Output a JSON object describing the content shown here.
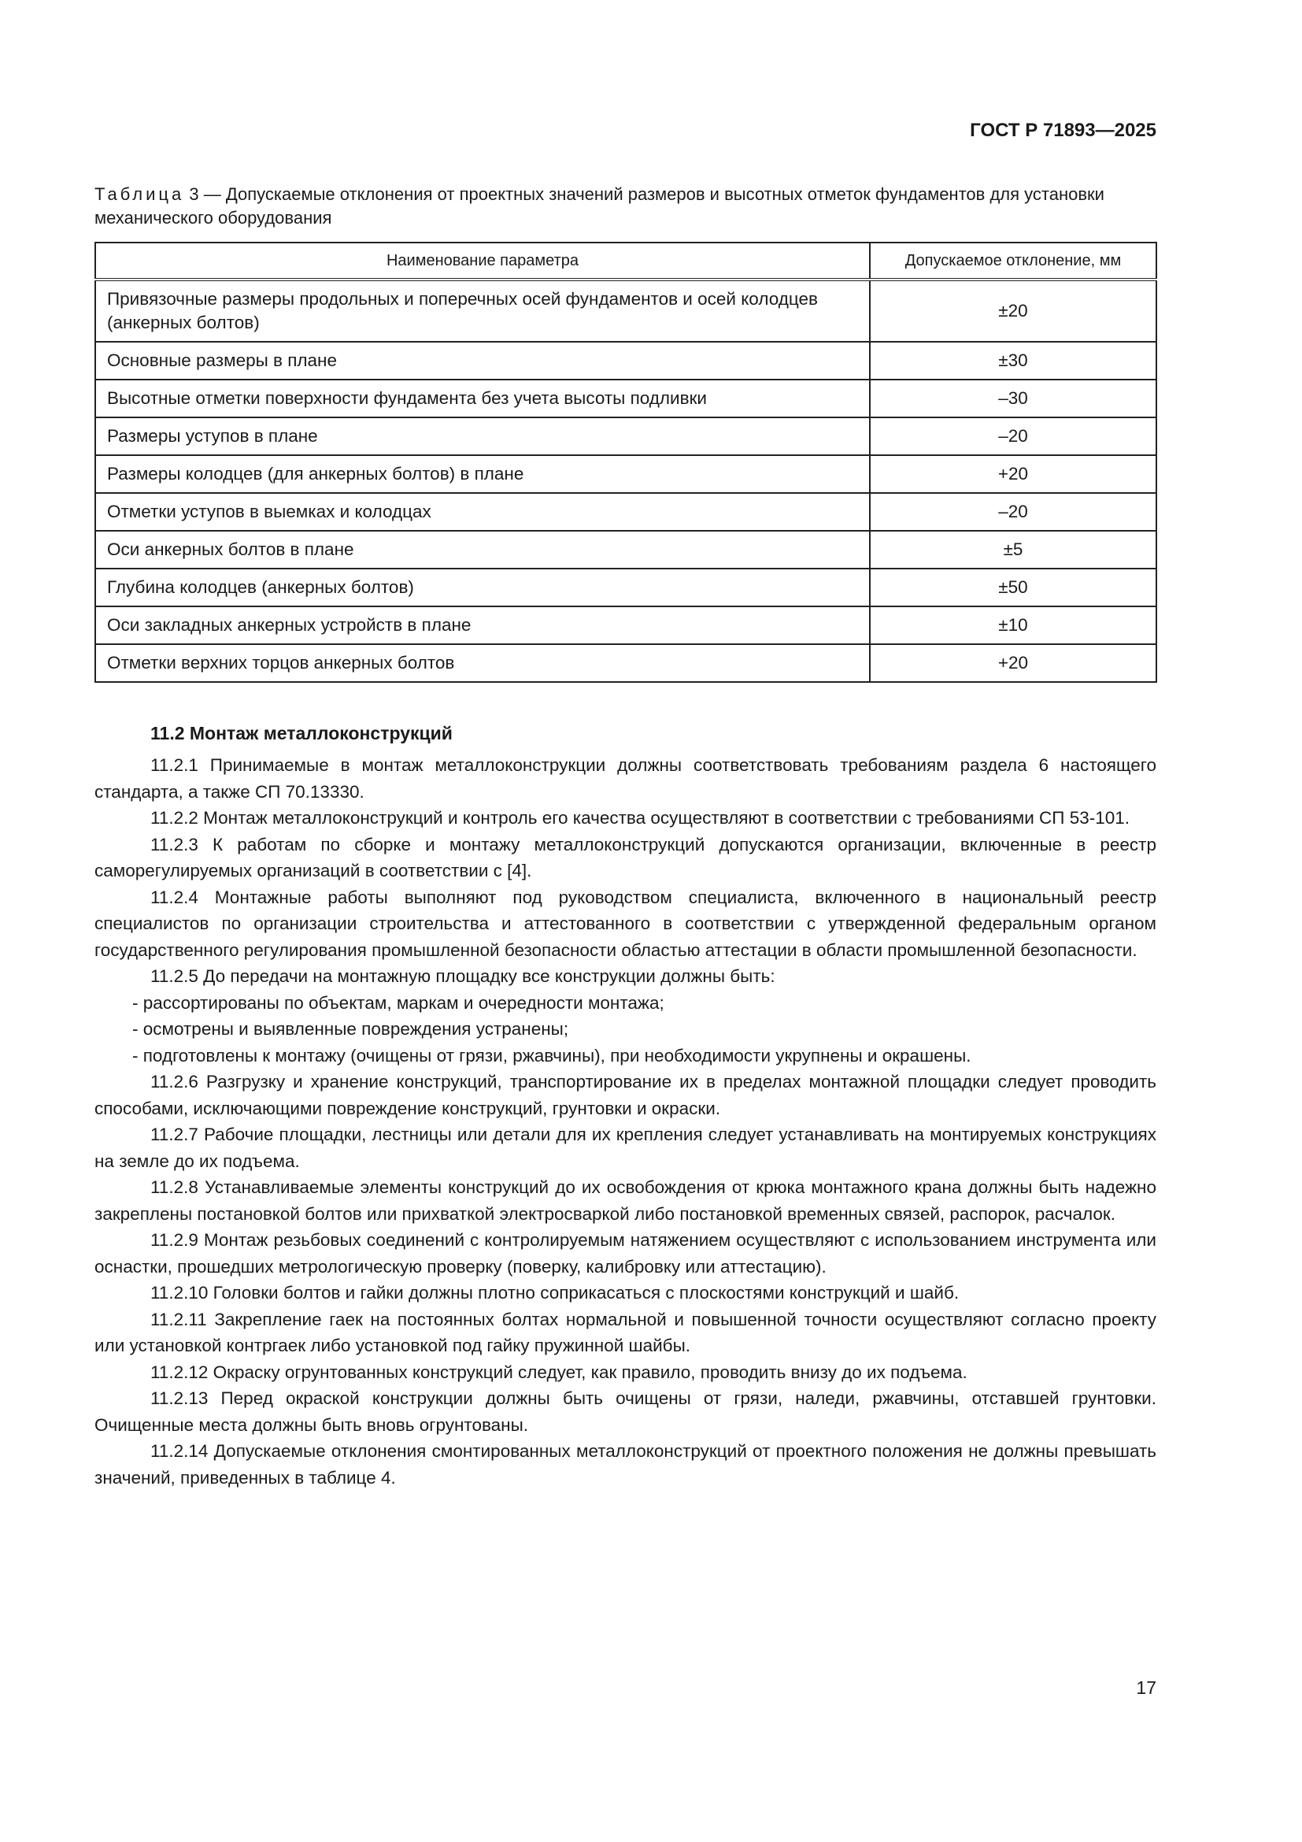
{
  "header": {
    "doc_id": "ГОСТ Р 71893—2025"
  },
  "table": {
    "label": "Таблица",
    "caption_rest": "3 — Допускаемые отклонения от проектных значений размеров и высотных отметок фундаментов для установки механического оборудования",
    "columns": [
      "Наименование параметра",
      "Допускаемое отклонение, мм"
    ],
    "rows": [
      {
        "param": "Привязочные размеры продольных и поперечных осей фундаментов и осей колодцев (анкерных болтов)",
        "value": "±20"
      },
      {
        "param": "Основные размеры в плане",
        "value": "±30"
      },
      {
        "param": "Высотные отметки поверхности фундамента без учета высоты подливки",
        "value": "–30"
      },
      {
        "param": "Размеры уступов в плане",
        "value": "–20"
      },
      {
        "param": "Размеры колодцев (для анкерных болтов) в плане",
        "value": "+20"
      },
      {
        "param": "Отметки уступов в выемках и колодцах",
        "value": "–20"
      },
      {
        "param": "Оси анкерных болтов в плане",
        "value": "±5"
      },
      {
        "param": "Глубина колодцев (анкерных болтов)",
        "value": "±50"
      },
      {
        "param": "Оси закладных анкерных устройств в плане",
        "value": "±10"
      },
      {
        "param": "Отметки верхних торцов анкерных болтов",
        "value": "+20"
      }
    ]
  },
  "section": {
    "title": "11.2 Монтаж металлоконструкций",
    "paragraphs": [
      "11.2.1 Принимаемые в монтаж металлоконструкции должны соответствовать требованиям раздела 6 настоящего стандарта, а также СП 70.13330.",
      "11.2.2 Монтаж металлоконструкций и контроль его качества осуществляют в соответствии с требованиями СП 53-101.",
      "11.2.3 К работам по сборке и монтажу металлоконструкций допускаются организации, включенные в реестр саморегулируемых организаций в соответствии с [4].",
      "11.2.4 Монтажные работы выполняют под руководством специалиста, включенного в национальный реестр специалистов по организации строительства и аттестованного в соответствии с утвержденной федеральным органом государственного регулирования промышленной безопасности областью аттестации в области промышленной безопасности.",
      "11.2.5 До передачи на монтажную площадку все конструкции должны быть:"
    ],
    "list": [
      "- рассортированы по объектам, маркам и очередности монтажа;",
      "- осмотрены и выявленные повреждения устранены;",
      "- подготовлены к монтажу (очищены от грязи, ржавчины), при необходимости укрупнены и окрашены."
    ],
    "paragraphs2": [
      "11.2.6 Разгрузку и хранение конструкций, транспортирование их в пределах монтажной площадки следует проводить способами, исключающими повреждение конструкций, грунтовки и окраски.",
      "11.2.7 Рабочие площадки, лестницы или детали для их крепления следует устанавливать на монтируемых конструкциях на земле до их подъема.",
      "11.2.8 Устанавливаемые элементы конструкций до их освобождения от крюка монтажного крана должны быть надежно закреплены постановкой болтов или прихваткой электросваркой либо постановкой временных связей, распорок, расчалок.",
      "11.2.9 Монтаж резьбовых соединений с контролируемым натяжением осуществляют с использованием инструмента или оснастки, прошедших метрологическую проверку (поверку, калибровку или аттестацию).",
      "11.2.10 Головки болтов и гайки должны плотно соприкасаться с плоскостями конструкций и шайб.",
      "11.2.11 Закрепление гаек на постоянных болтах нормальной и повышенной точности осуществляют согласно проекту или установкой контргаек либо установкой под гайку пружинной шайбы.",
      "11.2.12 Окраску огрунтованных конструкций следует, как правило, проводить внизу до их подъема.",
      "11.2.13 Перед окраской конструкции должны быть очищены от грязи, наледи, ржавчины, отставшей грунтовки. Очищенные места должны быть вновь огрунтованы.",
      "11.2.14 Допускаемые отклонения смонтированных металлоконструкций от проектного положения не должны превышать значений, приведенных в таблице 4."
    ]
  },
  "footer": {
    "page_number": "17"
  }
}
